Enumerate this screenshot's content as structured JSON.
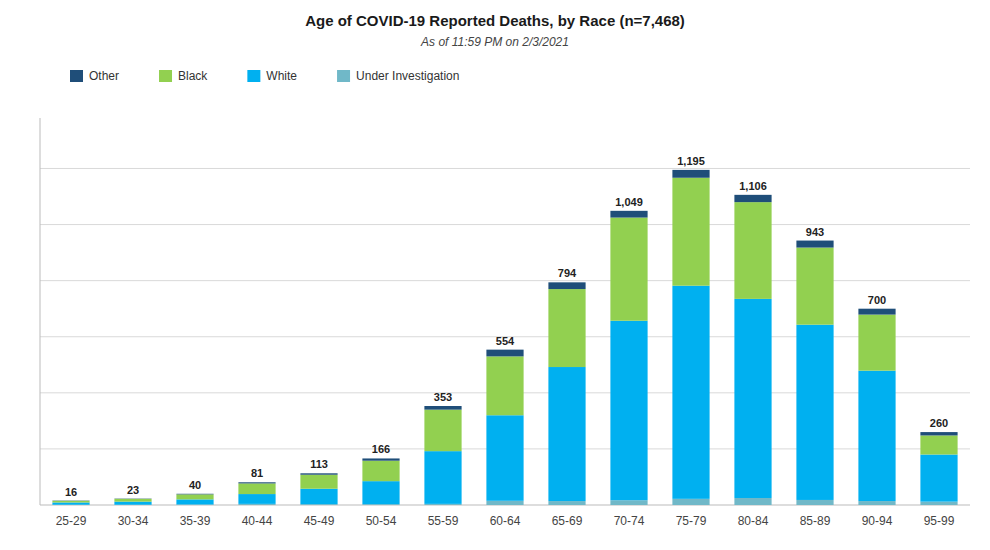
{
  "chart_data": {
    "type": "bar",
    "stacked": true,
    "title": "Age of COVID-19 Reported Deaths, by Race (n=7,468)",
    "subtitle": "As of 11:59 PM on 2/3/2021",
    "categories": [
      "25-29",
      "30-34",
      "35-39",
      "40-44",
      "45-49",
      "50-54",
      "55-59",
      "60-64",
      "65-69",
      "70-74",
      "75-79",
      "80-84",
      "85-89",
      "90-94",
      "95-99"
    ],
    "series": [
      {
        "name": "Under Investigation",
        "color": "#70b8c8",
        "values": [
          1,
          1,
          2,
          4,
          3,
          3,
          4,
          15,
          14,
          17,
          22,
          25,
          18,
          14,
          12
        ]
      },
      {
        "name": "White",
        "color": "#00b0f0",
        "values": [
          8,
          11,
          18,
          35,
          55,
          82,
          188,
          305,
          478,
          640,
          760,
          710,
          625,
          465,
          168
        ]
      },
      {
        "name": "Black",
        "color": "#92d050",
        "values": [
          6,
          10,
          18,
          38,
          50,
          73,
          148,
          210,
          278,
          368,
          385,
          345,
          275,
          200,
          68
        ]
      },
      {
        "name": "Other",
        "color": "#1f4e79",
        "values": [
          1,
          1,
          2,
          4,
          5,
          8,
          13,
          24,
          24,
          24,
          28,
          26,
          25,
          21,
          12
        ]
      }
    ],
    "totals": [
      16,
      23,
      40,
      81,
      113,
      166,
      353,
      554,
      794,
      1049,
      1195,
      1106,
      943,
      700,
      260
    ],
    "total_labels": [
      "16",
      "23",
      "40",
      "81",
      "113",
      "166",
      "353",
      "554",
      "794",
      "1,049",
      "1,195",
      "1,106",
      "943",
      "700",
      "260"
    ],
    "ylim": [
      0,
      1380
    ],
    "yticks": [
      200,
      400,
      600,
      800,
      1000,
      1200
    ],
    "grid": true,
    "tick_labels": "x",
    "legend": "top"
  }
}
